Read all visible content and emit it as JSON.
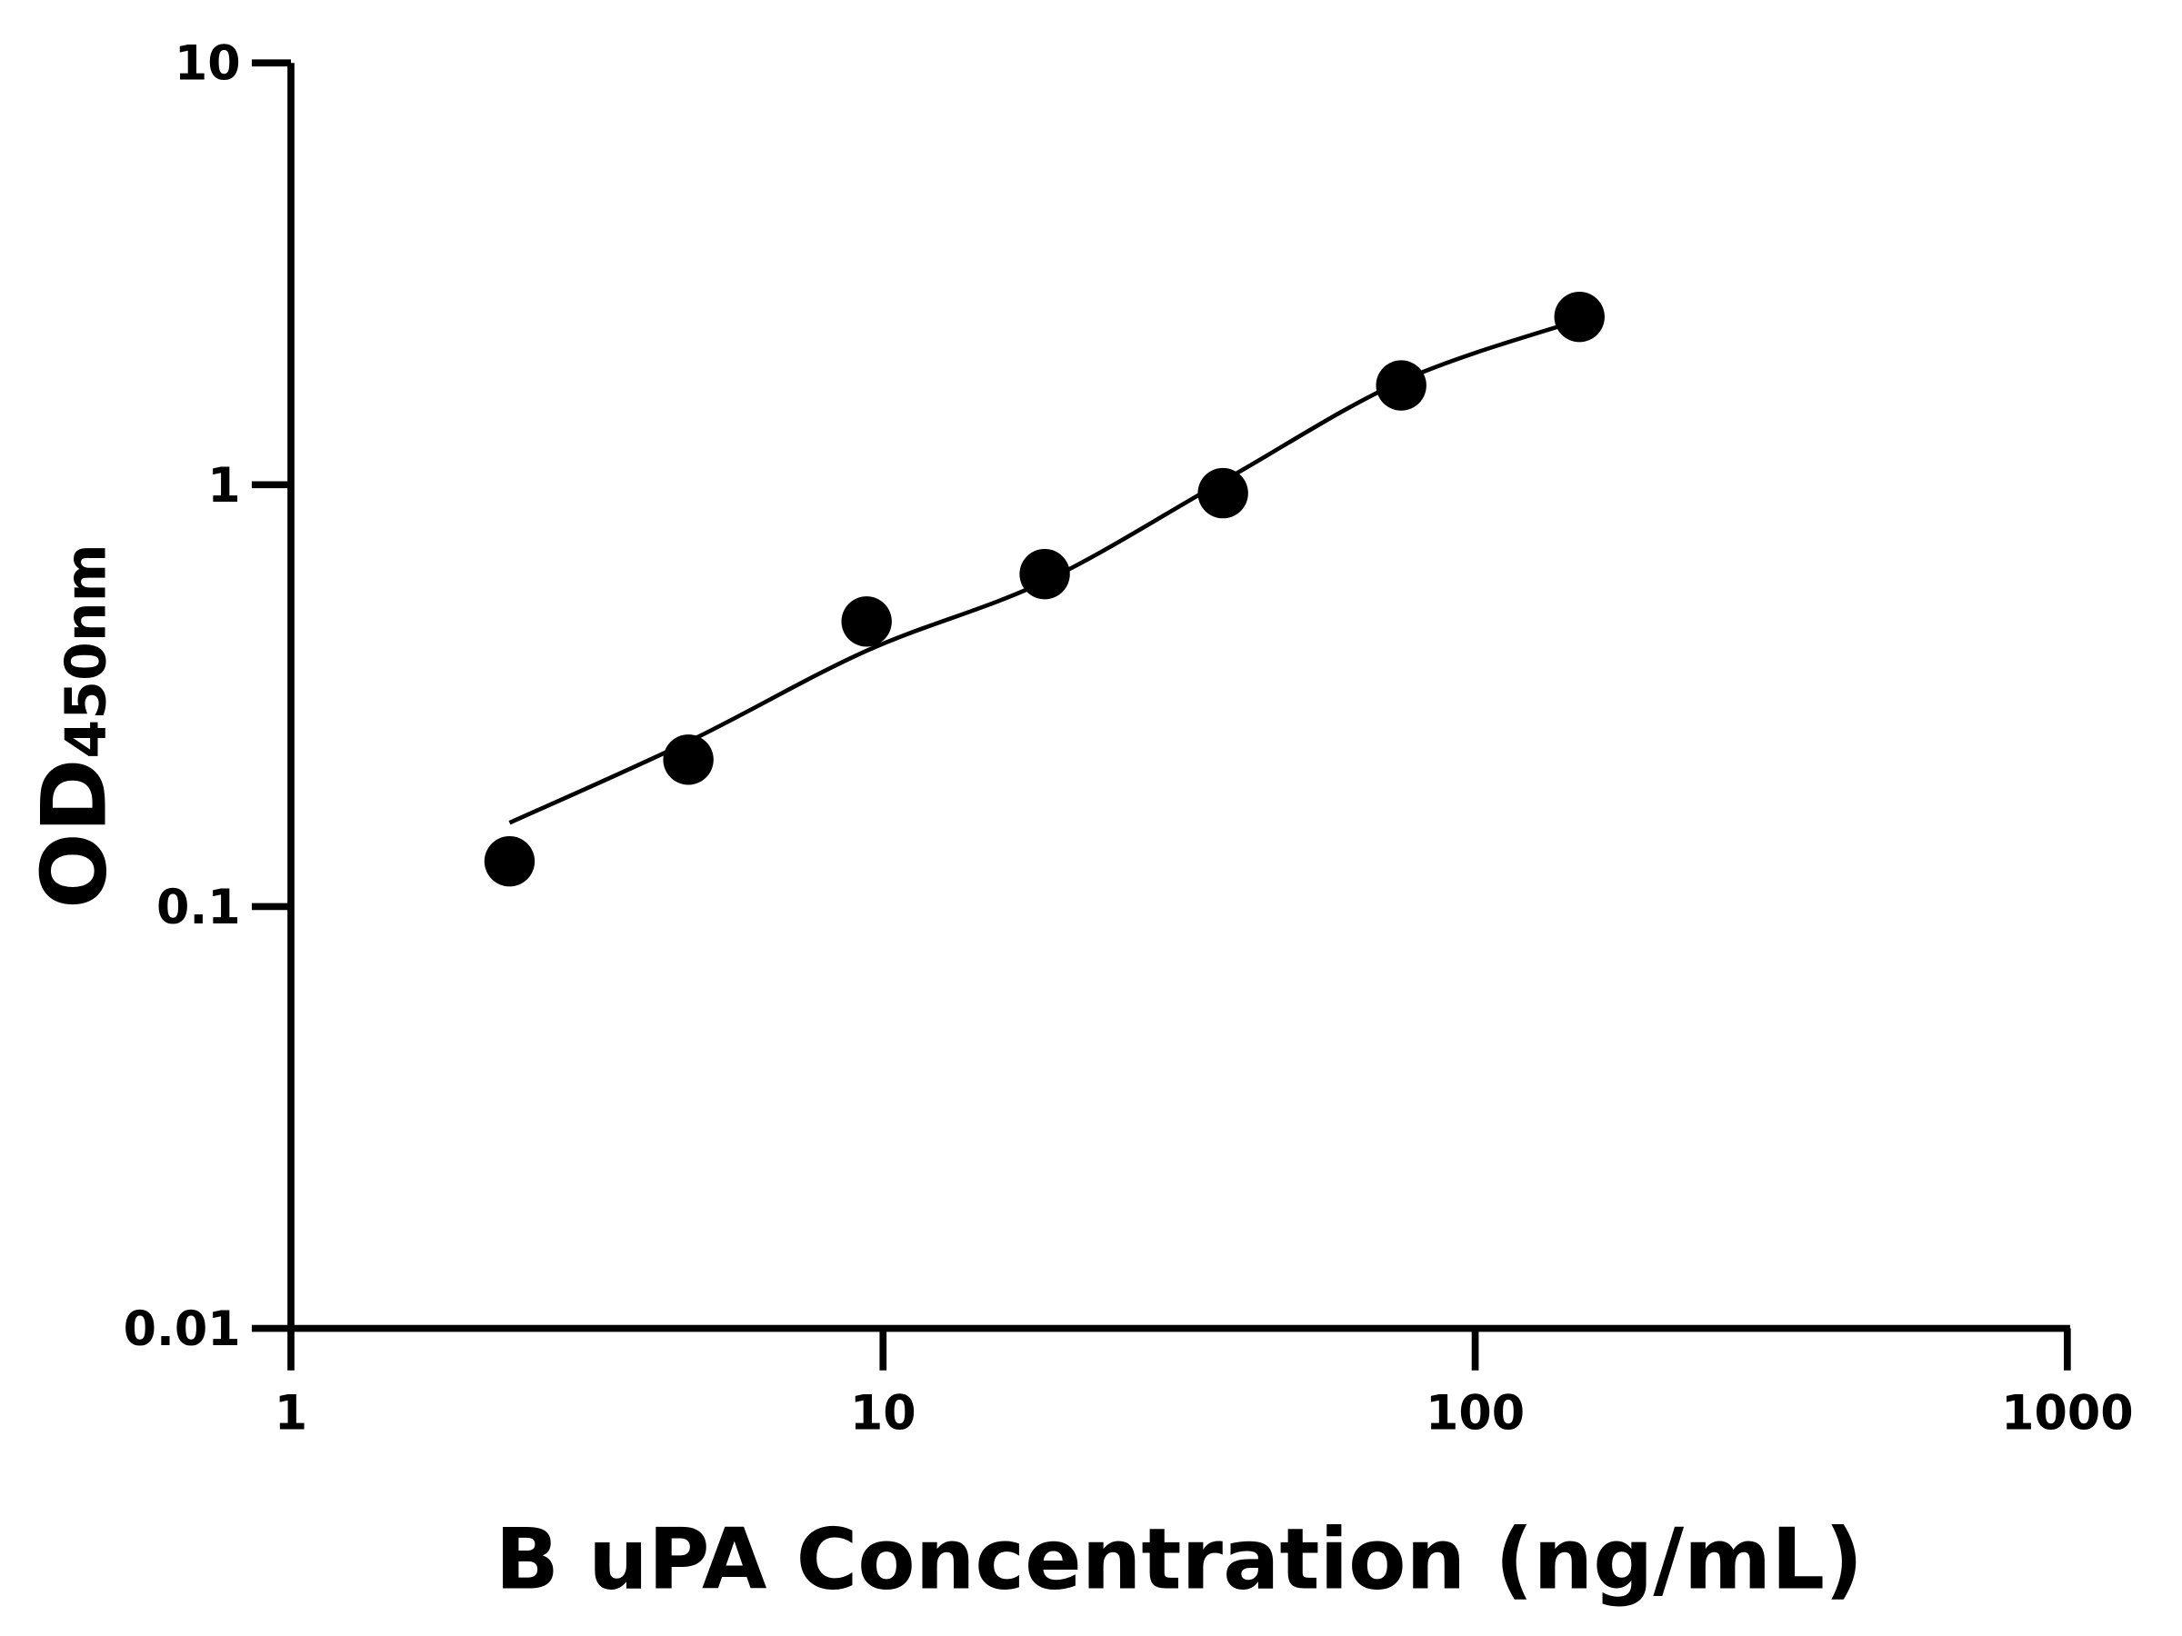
{
  "chart_data": {
    "type": "scatter",
    "title": "",
    "xlabel": "B uPA Concentration (ng/mL)",
    "ylabel": {
      "main": "OD",
      "subscript": "450nm"
    },
    "x_scale": "log",
    "y_scale": "log",
    "xlim": [
      1,
      1000
    ],
    "ylim": [
      0.01,
      10
    ],
    "x_ticks": [
      "1",
      "10",
      "100",
      "1000"
    ],
    "y_ticks": [
      "0.01",
      "0.1",
      "1",
      "10"
    ],
    "grid": false,
    "legend": "none",
    "series": [
      {
        "marker": "filled-circle",
        "color": "#000000",
        "x": [
          2.34,
          4.69,
          9.38,
          18.75,
          37.5,
          75,
          150
        ],
        "y": [
          0.128,
          0.223,
          0.474,
          0.614,
          0.955,
          1.72,
          2.5
        ]
      }
    ],
    "fit_curve": {
      "color": "#000000",
      "x": [
        2.34,
        4.69,
        9.38,
        18.75,
        37.5,
        75,
        150
      ],
      "y": [
        0.158,
        0.246,
        0.404,
        0.59,
        1.02,
        1.76,
        2.46
      ]
    }
  }
}
